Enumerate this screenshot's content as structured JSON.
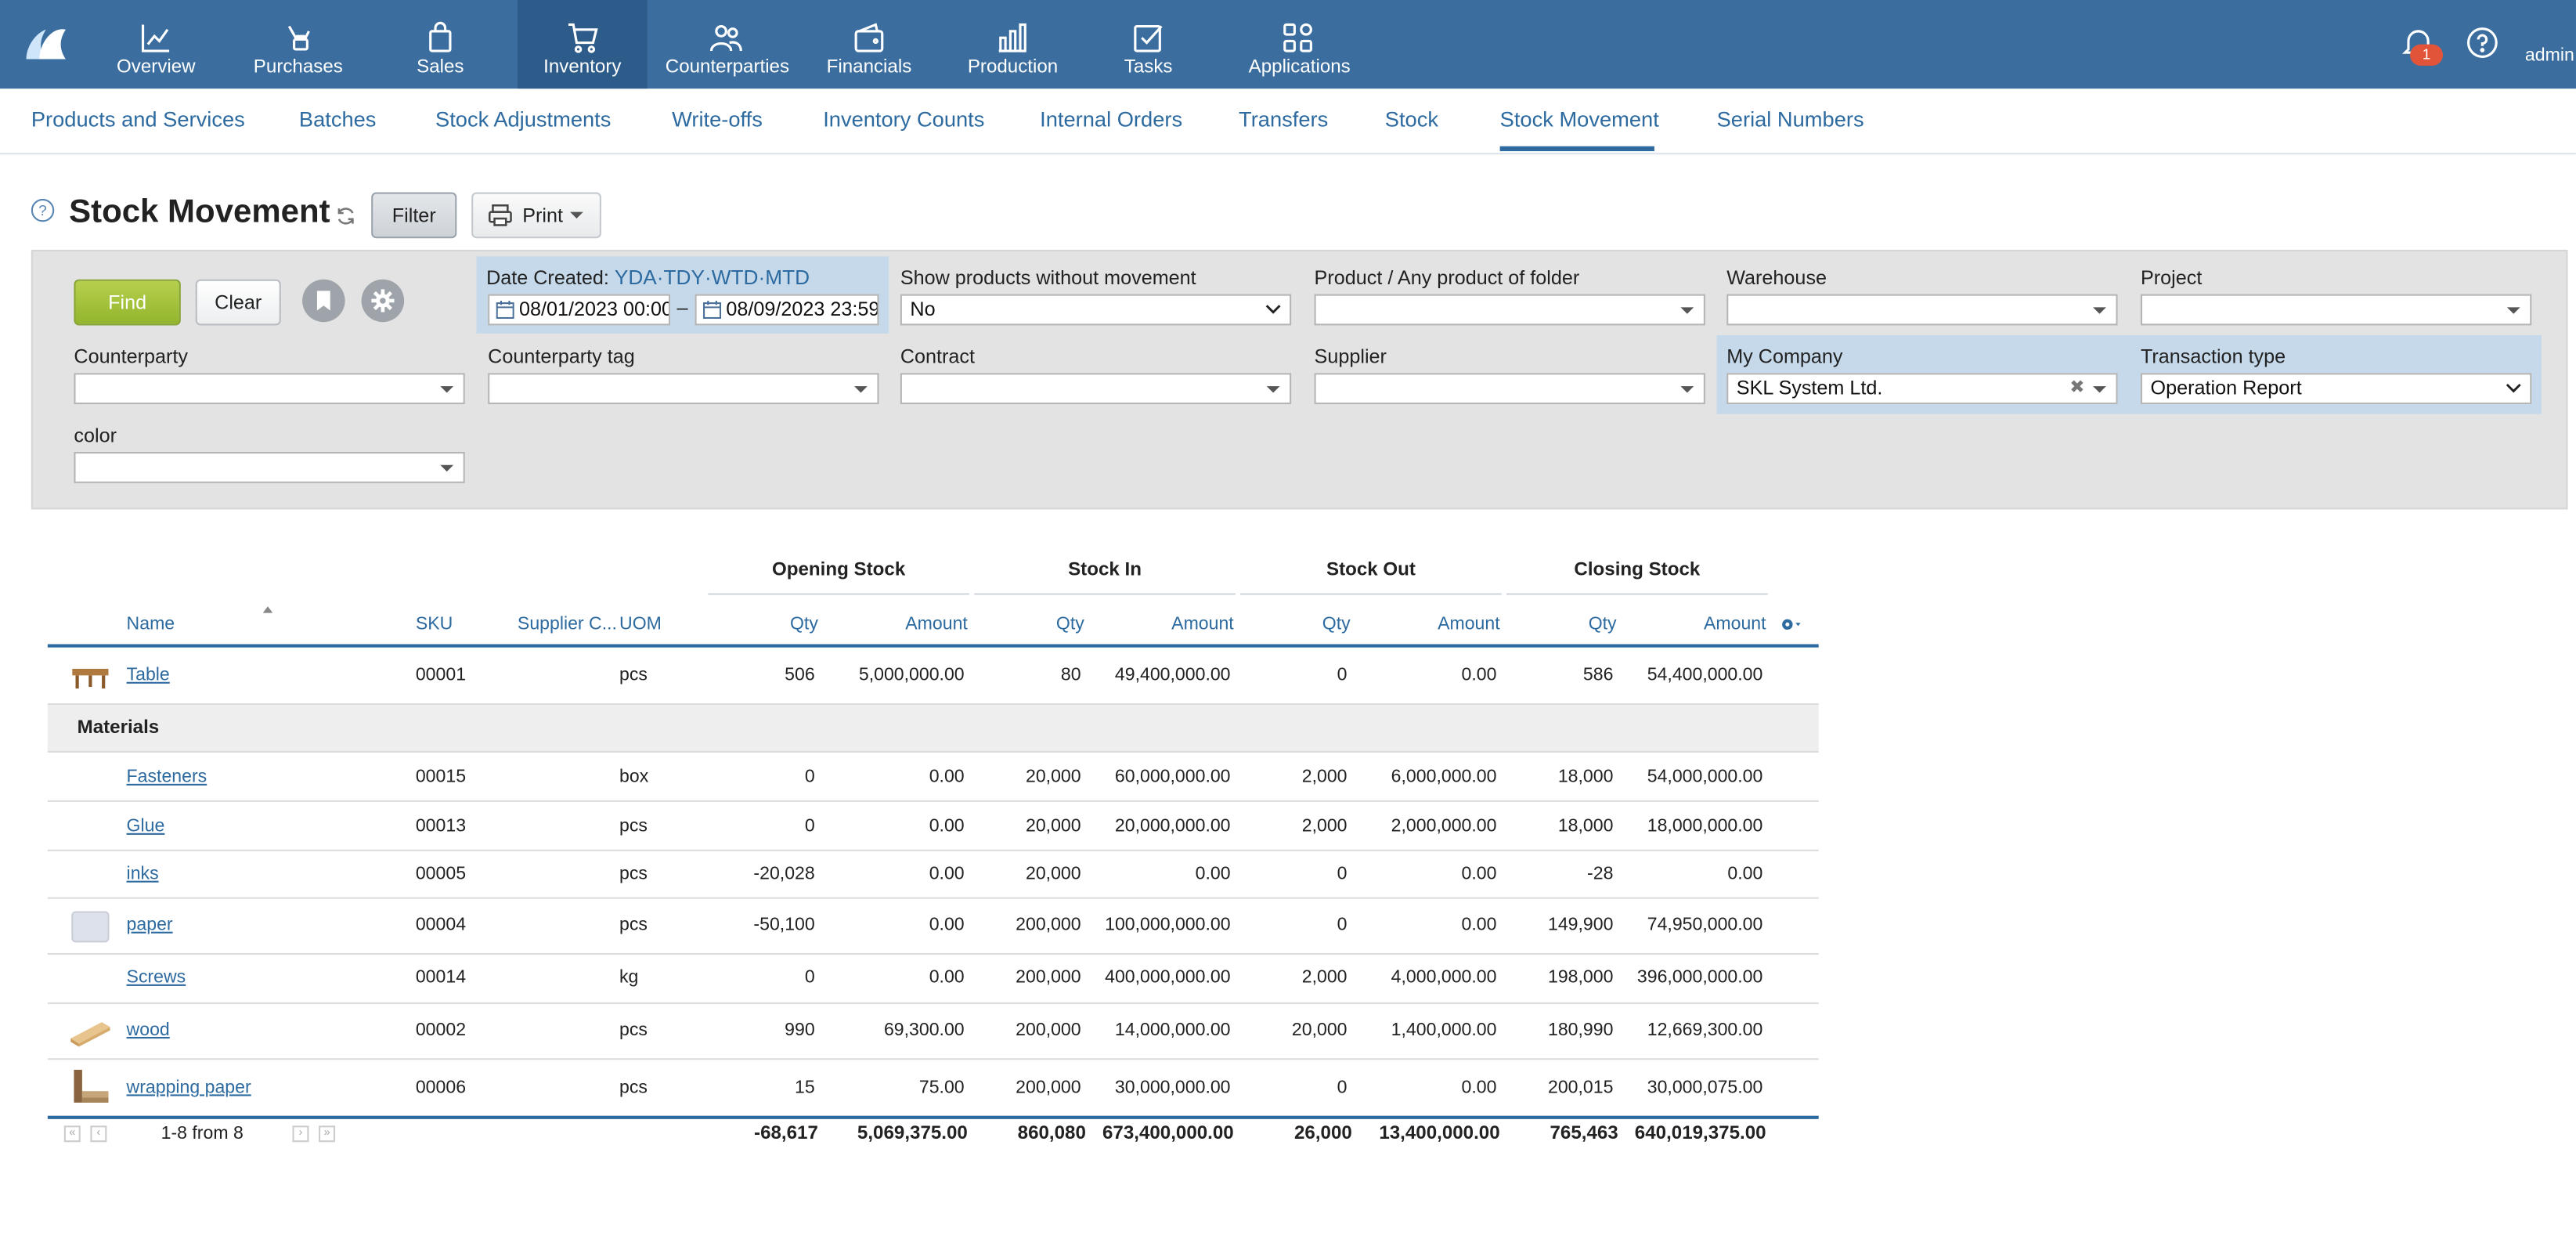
{
  "nav": {
    "items": [
      {
        "label": "Overview",
        "icon": "chart-line-icon"
      },
      {
        "label": "Purchases",
        "icon": "hand-bag-icon"
      },
      {
        "label": "Sales",
        "icon": "shopping-bag-icon"
      },
      {
        "label": "Inventory",
        "icon": "cart-icon"
      },
      {
        "label": "Counterparties",
        "icon": "people-icon"
      },
      {
        "label": "Financials",
        "icon": "wallet-icon"
      },
      {
        "label": "Production",
        "icon": "factory-icon"
      },
      {
        "label": "Tasks",
        "icon": "checkbox-icon"
      },
      {
        "label": "Applications",
        "icon": "apps-grid-icon"
      }
    ],
    "active": "Inventory",
    "notifications": "1",
    "user": "admin"
  },
  "subnav": {
    "tabs": [
      "Products and Services",
      "Batches",
      "Stock Adjustments",
      "Write-offs",
      "Inventory Counts",
      "Internal Orders",
      "Transfers",
      "Stock",
      "Stock Movement",
      "Serial Numbers"
    ],
    "active": "Stock Movement"
  },
  "page": {
    "help": "?",
    "title": "Stock Movement",
    "filter_label": "Filter",
    "print_label": "Print"
  },
  "filters": {
    "find_label": "Find",
    "clear_label": "Clear",
    "date_created_label": "Date Created:",
    "date_shortcuts": [
      "YDA",
      "TDY",
      "WTD",
      "MTD"
    ],
    "date_sep": "·",
    "date_from": "08/01/2023 00:00",
    "date_to": "08/09/2023 23:59",
    "date_dash": "–",
    "show_without_movement_label": "Show products without movement",
    "show_without_movement_value": "No",
    "product_label": "Product / Any product of folder",
    "product_value": "",
    "warehouse_label": "Warehouse",
    "warehouse_value": "",
    "project_label": "Project",
    "project_value": "",
    "counterparty_label": "Counterparty",
    "counterparty_value": "",
    "counterparty_tag_label": "Counterparty tag",
    "counterparty_tag_value": "",
    "contract_label": "Contract",
    "contract_value": "",
    "supplier_label": "Supplier",
    "supplier_value": "",
    "my_company_label": "My Company",
    "my_company_value": "SKL System Ltd.",
    "transaction_type_label": "Transaction type",
    "transaction_type_value": "Operation Report",
    "color_label": "color",
    "color_value": ""
  },
  "table": {
    "groups": [
      "Opening Stock",
      "Stock In",
      "Stock Out",
      "Closing Stock"
    ],
    "columns": {
      "name": "Name",
      "sku": "SKU",
      "supplier": "Supplier C...",
      "uom": "UOM",
      "qty": "Qty",
      "amount": "Amount"
    },
    "rows": [
      {
        "name": "Table",
        "sku": "00001",
        "uom": "pcs",
        "open_qty": "506",
        "open_amt": "5,000,000.00",
        "in_qty": "80",
        "in_amt": "49,400,000.00",
        "out_qty": "0",
        "out_amt": "0.00",
        "close_qty": "586",
        "close_amt": "54,400,000.00",
        "thumb": "table"
      },
      {
        "group": "Materials"
      },
      {
        "name": "Fasteners",
        "sku": "00015",
        "uom": "box",
        "open_qty": "0",
        "open_amt": "0.00",
        "in_qty": "20,000",
        "in_amt": "60,000,000.00",
        "out_qty": "2,000",
        "out_amt": "6,000,000.00",
        "close_qty": "18,000",
        "close_amt": "54,000,000.00"
      },
      {
        "name": "Glue",
        "sku": "00013",
        "uom": "pcs",
        "open_qty": "0",
        "open_amt": "0.00",
        "in_qty": "20,000",
        "in_amt": "20,000,000.00",
        "out_qty": "2,000",
        "out_amt": "2,000,000.00",
        "close_qty": "18,000",
        "close_amt": "18,000,000.00"
      },
      {
        "name": "inks",
        "sku": "00005",
        "uom": "pcs",
        "open_qty": "-20,028",
        "open_amt": "0.00",
        "in_qty": "20,000",
        "in_amt": "0.00",
        "out_qty": "0",
        "out_amt": "0.00",
        "close_qty": "-28",
        "close_amt": "0.00"
      },
      {
        "name": "paper",
        "sku": "00004",
        "uom": "pcs",
        "open_qty": "-50,100",
        "open_amt": "0.00",
        "in_qty": "200,000",
        "in_amt": "100,000,000.00",
        "out_qty": "0",
        "out_amt": "0.00",
        "close_qty": "149,900",
        "close_amt": "74,950,000.00",
        "thumb": "paper"
      },
      {
        "name": "Screws",
        "sku": "00014",
        "uom": "kg",
        "open_qty": "0",
        "open_amt": "0.00",
        "in_qty": "200,000",
        "in_amt": "400,000,000.00",
        "out_qty": "2,000",
        "out_amt": "4,000,000.00",
        "close_qty": "198,000",
        "close_amt": "396,000,000.00"
      },
      {
        "name": "wood",
        "sku": "00002",
        "uom": "pcs",
        "open_qty": "990",
        "open_amt": "69,300.00",
        "in_qty": "200,000",
        "in_amt": "14,000,000.00",
        "out_qty": "20,000",
        "out_amt": "1,400,000.00",
        "close_qty": "180,990",
        "close_amt": "12,669,300.00",
        "thumb": "wood"
      },
      {
        "name": "wrapping paper",
        "sku": "00006",
        "uom": "pcs",
        "open_qty": "15",
        "open_amt": "75.00",
        "in_qty": "200,000",
        "in_amt": "30,000,000.00",
        "out_qty": "0",
        "out_amt": "0.00",
        "close_qty": "200,015",
        "close_amt": "30,000,075.00",
        "thumb": "wrapping"
      }
    ],
    "pagination": "1-8 from 8",
    "pager_first": "«",
    "pager_prev": "‹",
    "pager_next": "›",
    "pager_last": "»",
    "totals": {
      "open_qty": "-68,617",
      "open_amt": "5,069,375.00",
      "in_qty": "860,080",
      "in_amt": "673,400,000.00",
      "out_qty": "26,000",
      "out_amt": "13,400,000.00",
      "close_qty": "765,463",
      "close_amt": "640,019,375.00"
    }
  },
  "colors": {
    "nav_bg": "#3b6e9f",
    "nav_active": "#2d5c8a",
    "link": "#2c6aa0",
    "find_green": "#a4c23c",
    "badge": "#e2543a",
    "panel": "#e3e3e3",
    "highlight": "#c5d9ea"
  }
}
